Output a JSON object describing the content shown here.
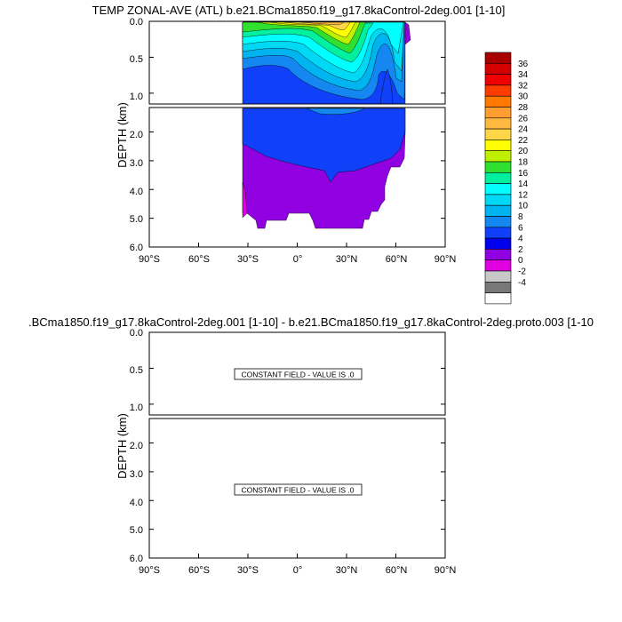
{
  "chart_data": [
    {
      "type": "contour",
      "title": "TEMP ZONAL-AVE (ATL) b.e21.BCma1850.f19_g17.8kaControl-2deg.001 [1-10]",
      "xlabel": "",
      "ylabel": "DEPTH (km)",
      "xlim": [
        -90,
        90
      ],
      "x_ticks": [
        -90,
        -60,
        -30,
        0,
        30,
        60,
        90
      ],
      "x_tick_labels": [
        "90°S",
        "60°S",
        "30°S",
        "0°",
        "30°N",
        "60°N",
        "90°N"
      ],
      "upper_ylim": [
        0,
        1.15
      ],
      "upper_y_ticks": [
        0.0,
        0.5,
        1.0
      ],
      "upper_y_tick_labels": [
        "0.0",
        "0.5",
        "1.0"
      ],
      "lower_ylim": [
        1.15,
        6.0
      ],
      "lower_y_ticks": [
        2.0,
        3.0,
        4.0,
        5.0,
        6.0
      ],
      "lower_y_tick_labels": [
        "2.0",
        "3.0",
        "4.0",
        "5.0",
        "6.0"
      ],
      "ocean_lat_range": [
        -34,
        66
      ],
      "contour_levels": [
        -4,
        -2,
        0,
        2,
        4,
        6,
        8,
        10,
        12,
        14,
        16,
        18,
        20,
        22,
        24,
        26,
        28,
        30,
        32,
        34,
        36
      ],
      "legend_placement": "right"
    },
    {
      "type": "contour",
      "title": ".BCma1850.f19_g17.8kaControl-2deg.001 [1-10] - b.e21.BCma1850.f19_g17.8kaControl-2deg.proto.003 [1-10",
      "xlabel": "",
      "ylabel": "DEPTH (km)",
      "xlim": [
        -90,
        90
      ],
      "x_ticks": [
        -90,
        -60,
        -30,
        0,
        30,
        60,
        90
      ],
      "x_tick_labels": [
        "90°S",
        "60°S",
        "30°S",
        "0°",
        "30°N",
        "60°N",
        "90°N"
      ],
      "upper_ylim": [
        0,
        1.15
      ],
      "upper_y_ticks": [
        0.0,
        0.5,
        1.0
      ],
      "upper_y_tick_labels": [
        "0.0",
        "0.5",
        "1.0"
      ],
      "lower_ylim": [
        1.15,
        6.0
      ],
      "lower_y_ticks": [
        2.0,
        3.0,
        4.0,
        5.0,
        6.0
      ],
      "lower_y_tick_labels": [
        "2.0",
        "3.0",
        "4.0",
        "5.0",
        "6.0"
      ],
      "annotations": [
        "CONSTANT FIELD - VALUE IS .0",
        "CONSTANT FIELD - VALUE IS .0"
      ]
    }
  ],
  "colorbar": {
    "labels": [
      "36",
      "34",
      "32",
      "30",
      "28",
      "26",
      "24",
      "22",
      "20",
      "18",
      "16",
      "14",
      "12",
      "10",
      "8",
      "6",
      "4",
      "2",
      "0",
      "-2",
      "-4"
    ],
    "colors": [
      "#a80000",
      "#d40000",
      "#f00000",
      "#ff3c00",
      "#ff7800",
      "#ff9e30",
      "#ffb840",
      "#ffd648",
      "#ffff00",
      "#bff000",
      "#30e030",
      "#00f0a0",
      "#00ffff",
      "#00d8f4",
      "#00b4f0",
      "#1488f0",
      "#1040f8",
      "#0000ee",
      "#9000e0",
      "#e000e0",
      "#c8c8c8",
      "#787878",
      "#ffffff"
    ]
  }
}
